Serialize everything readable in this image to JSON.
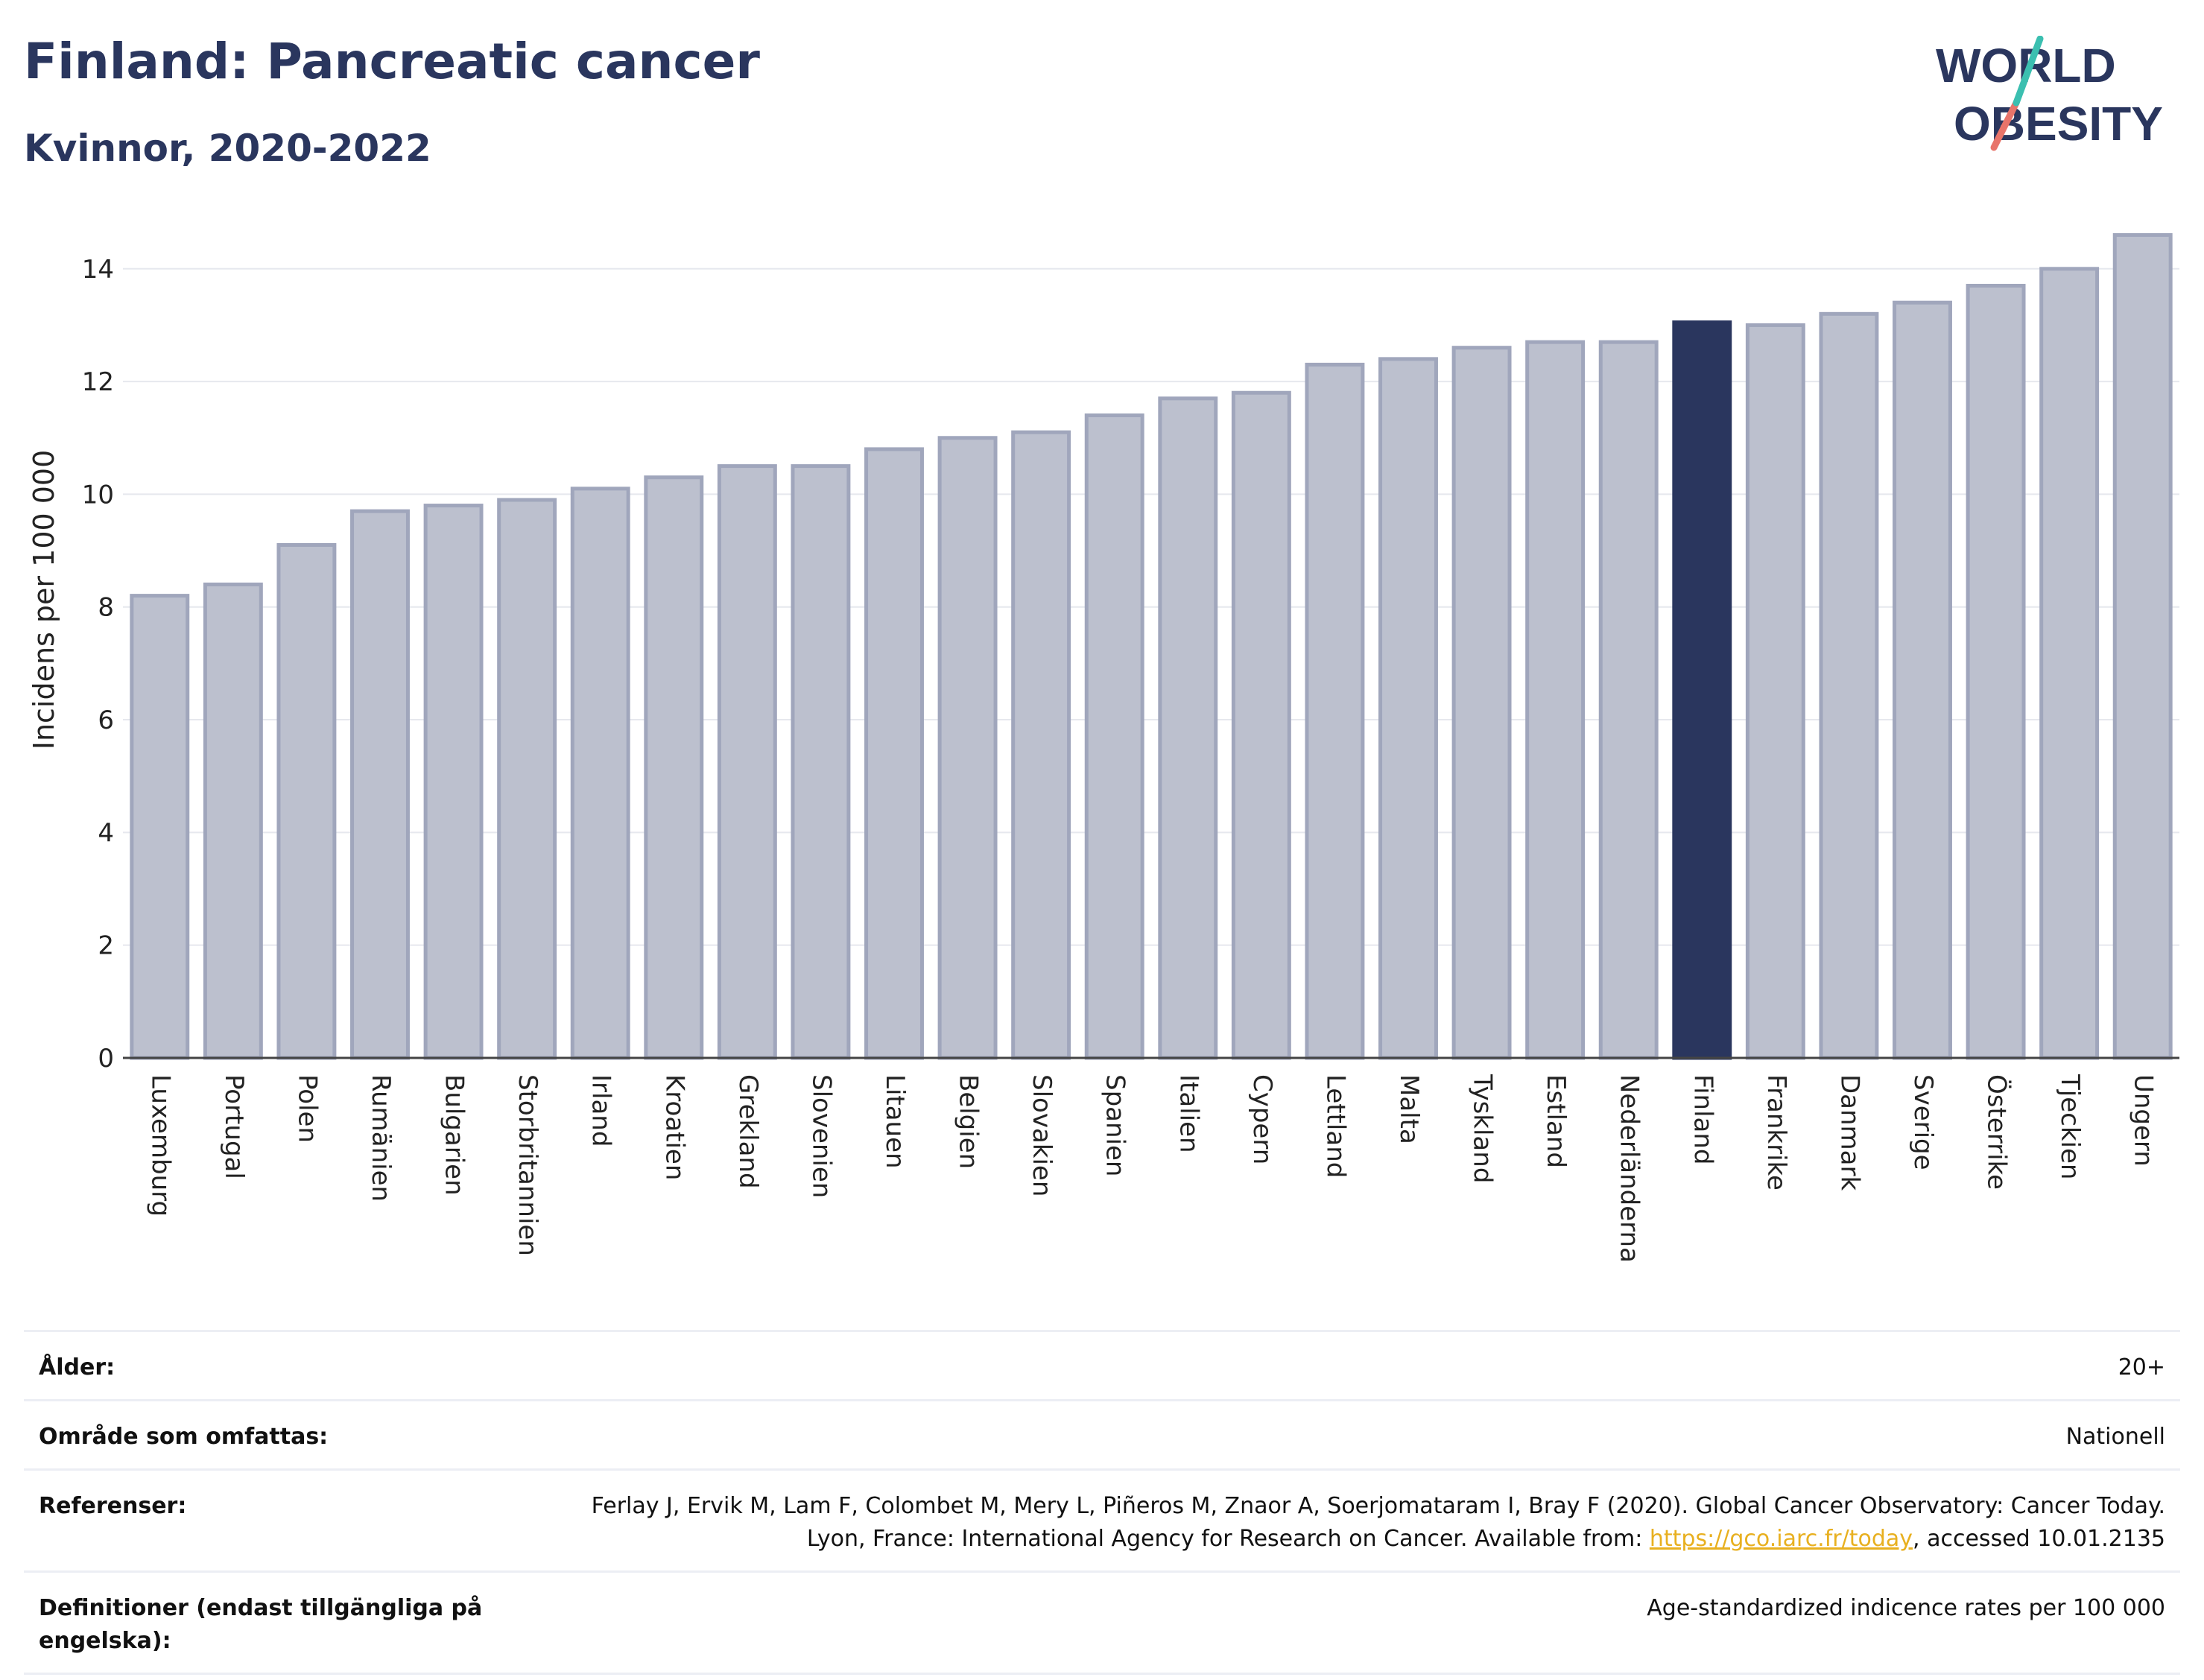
{
  "header": {
    "title": "Finland: Pancreatic cancer",
    "subtitle": "Kvinnor, 2020-2022"
  },
  "logo": {
    "line1": "WORLD",
    "line2": "OBESITY"
  },
  "colors": {
    "highlight": "#2a365e",
    "bar": "#bcc0ce",
    "bar_edge": "#a0a6bc",
    "axis_text": "#222222"
  },
  "chart_data": {
    "type": "bar",
    "ylabel": "Incidens per 100 000",
    "ylim": [
      0,
      15.2
    ],
    "yticks": [
      0,
      2,
      4,
      6,
      8,
      10,
      12,
      14
    ],
    "grid": true,
    "highlight": "Finland",
    "categories": [
      "Luxemburg",
      "Portugal",
      "Polen",
      "Rumänien",
      "Bulgarien",
      "Storbritannien",
      "Irland",
      "Kroatien",
      "Grekland",
      "Slovenien",
      "Litauen",
      "Belgien",
      "Slovakien",
      "Spanien",
      "Italien",
      "Cypern",
      "Lettland",
      "Malta",
      "Tyskland",
      "Estland",
      "Nederländerna",
      "Finland",
      "Frankrike",
      "Danmark",
      "Sverige",
      "Österrike",
      "Tjeckien",
      "Ungern"
    ],
    "values": [
      8.2,
      8.4,
      9.1,
      9.7,
      9.8,
      9.9,
      10.1,
      10.3,
      10.5,
      10.5,
      10.8,
      11.0,
      11.1,
      11.4,
      11.7,
      11.8,
      12.3,
      12.4,
      12.6,
      12.7,
      12.7,
      13.05,
      13.0,
      13.2,
      13.4,
      13.7,
      14.0,
      14.6
    ]
  },
  "meta": [
    {
      "key": "Ålder:",
      "value": "20+"
    },
    {
      "key": "Område som omfattas:",
      "value": "Nationell"
    },
    {
      "key": "Referenser:",
      "value_pre": "Ferlay J, Ervik M, Lam F, Colombet M, Mery L, Piñeros M, Znaor A, Soerjomataram I, Bray F (2020). Global Cancer Observatory: Cancer Today. Lyon, France: International Agency for Research on Cancer. Available from: ",
      "link": "https://gco.iarc.fr/today",
      "value_post": ", accessed 10.01.2135"
    },
    {
      "key": "Definitioner (endast tillgängliga på engelska):",
      "value": "Age-standardized indicence rates per 100 000"
    }
  ]
}
